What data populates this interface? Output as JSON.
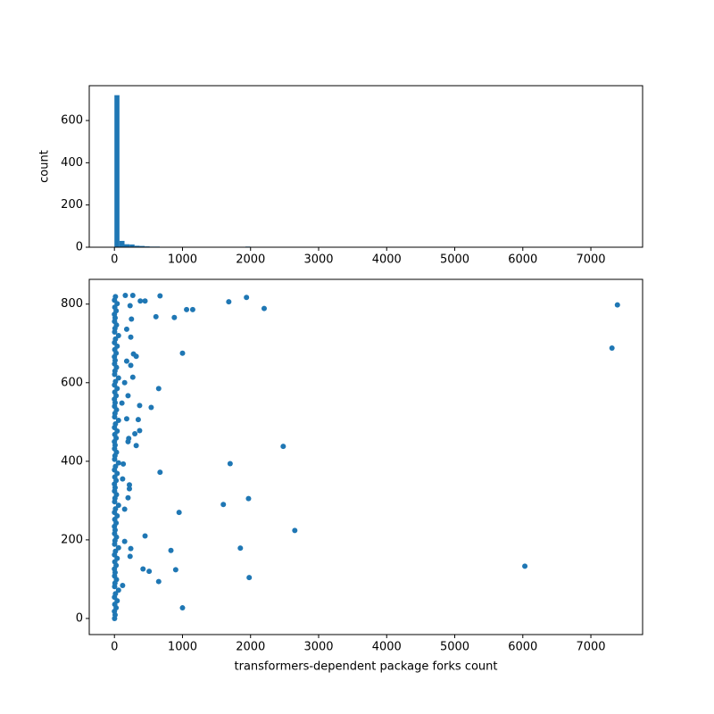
{
  "chart_data": [
    {
      "type": "histogram",
      "ylabel": "count",
      "color": "#1f77b4",
      "bins": [
        0,
        74,
        148,
        222,
        296,
        370,
        444,
        518,
        592,
        666,
        740,
        814,
        888,
        962,
        1036,
        1110,
        1184,
        1258,
        1332,
        1406,
        1480,
        1554,
        1628,
        1702,
        1776,
        1850,
        1924,
        1998,
        2072,
        2146,
        2220,
        2294,
        2368,
        2442,
        2516,
        2590,
        2664,
        2738,
        2812,
        2886,
        2960,
        3034,
        3108,
        3182,
        3256,
        3330,
        3404,
        3478,
        3552,
        3626,
        3700,
        3774,
        3848,
        3922,
        3996,
        4070,
        4144,
        4218,
        4292,
        4366,
        4440,
        4514,
        4588,
        4662,
        4736,
        4810,
        4884,
        4958,
        5032,
        5106,
        5180,
        5254,
        5328,
        5402,
        5476,
        5550,
        5624,
        5698,
        5772,
        5846,
        5920,
        5994,
        6068,
        6142,
        6216,
        6290,
        6364,
        6438,
        6512,
        6586,
        6660,
        6734,
        6808,
        6882,
        6956,
        7030,
        7104,
        7178,
        7252,
        7326,
        7400
      ],
      "counts": [
        720,
        30,
        14,
        13,
        7,
        6,
        4,
        3,
        3,
        2,
        0,
        2,
        2,
        2,
        1,
        1,
        0,
        0,
        0,
        0,
        0,
        1,
        1,
        1,
        0,
        1,
        3,
        0,
        0,
        1,
        0,
        0,
        0,
        1,
        0,
        1,
        0,
        0,
        0,
        0,
        0,
        0,
        0,
        0,
        0,
        0,
        0,
        0,
        0,
        0,
        0,
        0,
        0,
        0,
        0,
        0,
        0,
        0,
        0,
        0,
        0,
        0,
        0,
        0,
        0,
        0,
        0,
        0,
        0,
        0,
        0,
        0,
        0,
        0,
        0,
        0,
        0,
        0,
        0,
        0,
        0,
        1,
        0,
        0,
        0,
        0,
        0,
        0,
        0,
        0,
        0,
        0,
        0,
        0,
        0,
        0,
        0,
        0,
        1,
        1
      ],
      "xlim": [
        -370,
        7760
      ],
      "ylim": [
        0,
        765
      ],
      "xticks": [
        0,
        1000,
        2000,
        3000,
        4000,
        5000,
        6000,
        7000
      ],
      "yticks": [
        0,
        200,
        400,
        600
      ]
    },
    {
      "type": "scatter",
      "xlabel": "transformers-dependent package forks count",
      "color": "#1f77b4",
      "x": [
        2,
        10,
        0,
        25,
        5,
        40,
        1,
        15,
        60,
        3,
        8,
        30,
        2,
        10,
        0,
        25,
        5,
        40,
        1,
        15,
        60,
        3,
        8,
        30,
        2,
        10,
        0,
        25,
        5,
        40,
        1,
        15,
        60,
        3,
        8,
        30,
        2,
        10,
        0,
        25,
        5,
        40,
        1,
        15,
        60,
        3,
        8,
        30,
        2,
        10,
        0,
        25,
        5,
        40,
        1,
        15,
        60,
        3,
        8,
        30,
        2,
        10,
        0,
        25,
        5,
        40,
        1,
        15,
        60,
        3,
        8,
        30,
        2,
        10,
        0,
        25,
        5,
        40,
        1,
        15,
        60,
        3,
        8,
        30,
        2,
        10,
        0,
        25,
        5,
        40,
        1,
        15,
        7390,
        7310,
        6030,
        2650,
        2480,
        2200,
        1940,
        1970,
        1980,
        1850,
        1700,
        1680,
        1600,
        1150,
        1060,
        1000,
        1000,
        950,
        900,
        880,
        830,
        670,
        650,
        670,
        650,
        610,
        540,
        510,
        450,
        420,
        450,
        380,
        370,
        370,
        350,
        320,
        320,
        300,
        280,
        270,
        270,
        250,
        240,
        240,
        240,
        230,
        230,
        220,
        220,
        210,
        200,
        200,
        200,
        180,
        180,
        180,
        160,
        150,
        150,
        150,
        130,
        120,
        120,
        110
      ],
      "values": [
        0,
        9,
        18,
        27,
        36,
        45,
        54,
        63,
        72,
        81,
        90,
        99,
        108,
        117,
        126,
        135,
        144,
        153,
        162,
        171,
        180,
        189,
        198,
        207,
        216,
        225,
        234,
        243,
        252,
        261,
        270,
        279,
        288,
        297,
        306,
        315,
        324,
        333,
        342,
        351,
        360,
        369,
        378,
        387,
        396,
        405,
        414,
        423,
        432,
        441,
        450,
        459,
        468,
        477,
        486,
        495,
        504,
        513,
        522,
        531,
        540,
        549,
        558,
        567,
        576,
        585,
        594,
        603,
        612,
        621,
        630,
        639,
        648,
        657,
        666,
        675,
        684,
        693,
        702,
        711,
        720,
        729,
        738,
        747,
        756,
        765,
        774,
        783,
        792,
        801,
        810,
        819,
        798,
        688,
        133,
        224,
        438,
        789,
        817,
        305,
        104,
        179,
        394,
        806,
        290,
        786,
        786,
        675,
        27,
        270,
        124,
        766,
        173,
        821,
        585,
        372,
        94,
        768,
        537,
        120,
        210,
        126,
        808,
        808,
        542,
        478,
        506,
        667,
        440,
        470,
        673,
        822,
        614,
        762,
        716,
        644,
        178,
        158,
        796,
        340,
        330,
        458,
        567,
        450,
        307,
        508,
        655,
        736,
        822,
        600,
        278,
        196,
        393,
        84,
        355,
        548
      ],
      "xlim": [
        -370,
        7760
      ],
      "ylim": [
        -41,
        863
      ],
      "xticks": [
        0,
        1000,
        2000,
        3000,
        4000,
        5000,
        6000,
        7000
      ],
      "yticks": [
        0,
        200,
        400,
        600,
        800
      ]
    }
  ]
}
